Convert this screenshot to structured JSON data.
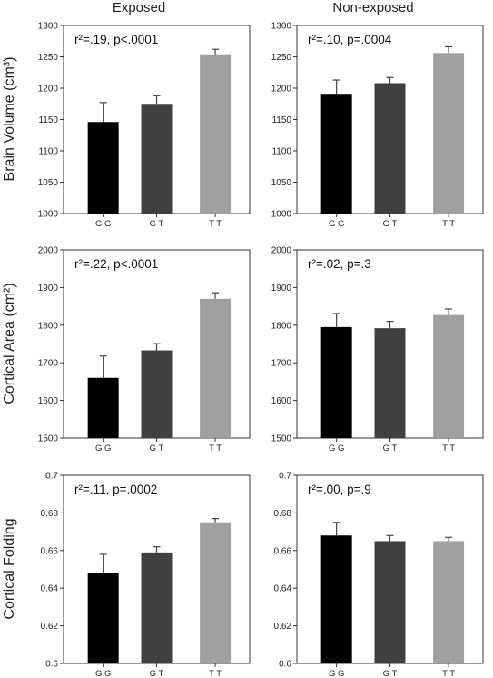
{
  "column_titles": [
    "Exposed",
    "Non-exposed"
  ],
  "row_labels": [
    "Brain Volume (cm³)",
    "Cortical Area (cm²)",
    "Cortical Folding"
  ],
  "colors": {
    "GG": "#000000",
    "GT": "#404040",
    "TT": "#a0a0a0"
  },
  "chart_data": [
    {
      "type": "bar",
      "panel": "brain-volume-exposed",
      "categories": [
        "G G",
        "G T",
        "T T"
      ],
      "values": [
        1146,
        1175,
        1254
      ],
      "errors": [
        31,
        13,
        8
      ],
      "ylim": [
        1000,
        1300
      ],
      "yticks": [
        "1000",
        "1050",
        "1100",
        "1150",
        "1200",
        "1250",
        "1300"
      ],
      "annotation": "r²=.19, p<.0001"
    },
    {
      "type": "bar",
      "panel": "brain-volume-nonexposed",
      "categories": [
        "G G",
        "G T",
        "T T"
      ],
      "values": [
        1191,
        1208,
        1256
      ],
      "errors": [
        22,
        9,
        10
      ],
      "ylim": [
        1000,
        1300
      ],
      "yticks": [
        "1000",
        "1050",
        "1100",
        "1150",
        "1200",
        "1250",
        "1300"
      ],
      "annotation": "r²=.10, p=.0004"
    },
    {
      "type": "bar",
      "panel": "cortical-area-exposed",
      "categories": [
        "G G",
        "G T",
        "T T"
      ],
      "values": [
        1660,
        1733,
        1870
      ],
      "errors": [
        58,
        18,
        16
      ],
      "ylim": [
        1500,
        2000
      ],
      "yticks": [
        "1500",
        "1600",
        "1700",
        "1800",
        "1900",
        "2000"
      ],
      "annotation": "r²=.22, p<.0001"
    },
    {
      "type": "bar",
      "panel": "cortical-area-nonexposed",
      "categories": [
        "G G",
        "G T",
        "T T"
      ],
      "values": [
        1795,
        1792,
        1827
      ],
      "errors": [
        36,
        18,
        16
      ],
      "ylim": [
        1500,
        2000
      ],
      "yticks": [
        "1500",
        "1600",
        "1700",
        "1800",
        "1900",
        "2000"
      ],
      "annotation": "r²=.02, p=.3"
    },
    {
      "type": "bar",
      "panel": "cortical-folding-exposed",
      "categories": [
        "G G",
        "G T",
        "T T"
      ],
      "values": [
        0.648,
        0.659,
        0.675
      ],
      "errors": [
        0.01,
        0.003,
        0.002
      ],
      "ylim": [
        0.6,
        0.7
      ],
      "yticks": [
        "0.6",
        "0.62",
        "0.64",
        "0.66",
        "0.68",
        "0.7"
      ],
      "annotation": "r²=.11, p=.0002"
    },
    {
      "type": "bar",
      "panel": "cortical-folding-nonexposed",
      "categories": [
        "G G",
        "G T",
        "T T"
      ],
      "values": [
        0.668,
        0.665,
        0.665
      ],
      "errors": [
        0.007,
        0.003,
        0.002
      ],
      "ylim": [
        0.6,
        0.7
      ],
      "yticks": [
        "0.6",
        "0.62",
        "0.64",
        "0.66",
        "0.68",
        "0.7"
      ],
      "annotation": "r²=.00, p=.9"
    }
  ]
}
